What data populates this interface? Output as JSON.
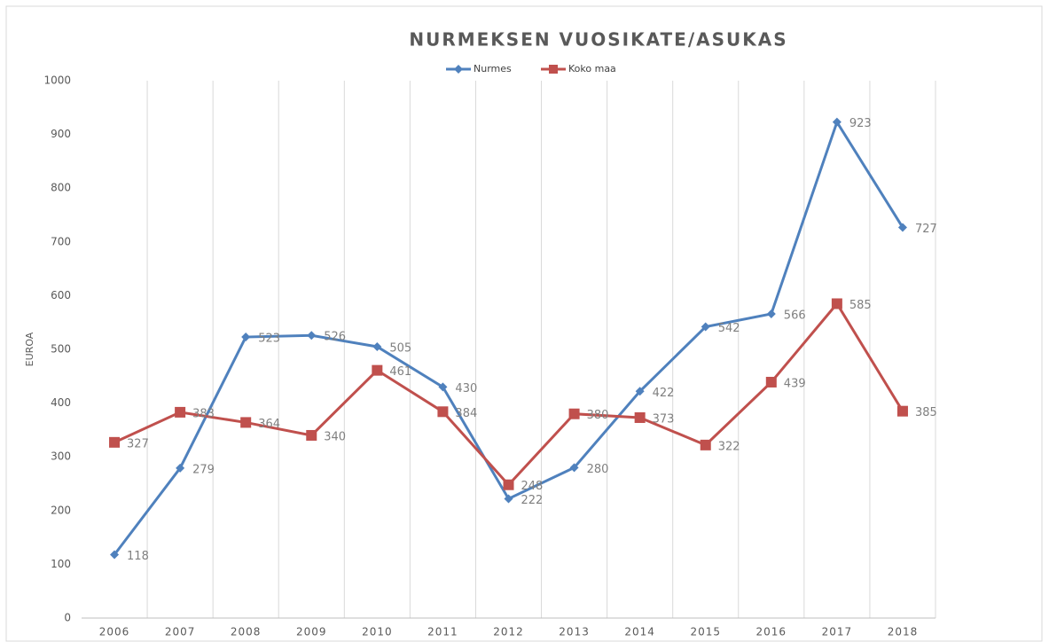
{
  "chart_data": {
    "type": "line",
    "title": "NURMEKSEN VUOSIKATE/ASUKAS",
    "ylabel": "EUROA",
    "categories": [
      "2006",
      "2007",
      "2008",
      "2009",
      "2010",
      "2011",
      "2012",
      "2013",
      "2014",
      "2015",
      "2016",
      "2017",
      "2018"
    ],
    "series": [
      {
        "name": "Nurmes",
        "color": "#4f81bd",
        "marker": "diamond",
        "values": [
          118,
          279,
          523,
          526,
          505,
          430,
          222,
          280,
          422,
          542,
          566,
          923,
          727
        ]
      },
      {
        "name": "Koko maa",
        "color": "#c0504d",
        "marker": "square",
        "values": [
          327,
          383,
          364,
          340,
          461,
          384,
          248,
          380,
          373,
          322,
          439,
          585,
          385
        ]
      }
    ],
    "ylim": [
      0,
      1000
    ],
    "yticks": [
      0,
      100,
      200,
      300,
      400,
      500,
      600,
      700,
      800,
      900,
      1000
    ],
    "grid": "x",
    "legend": "top"
  }
}
